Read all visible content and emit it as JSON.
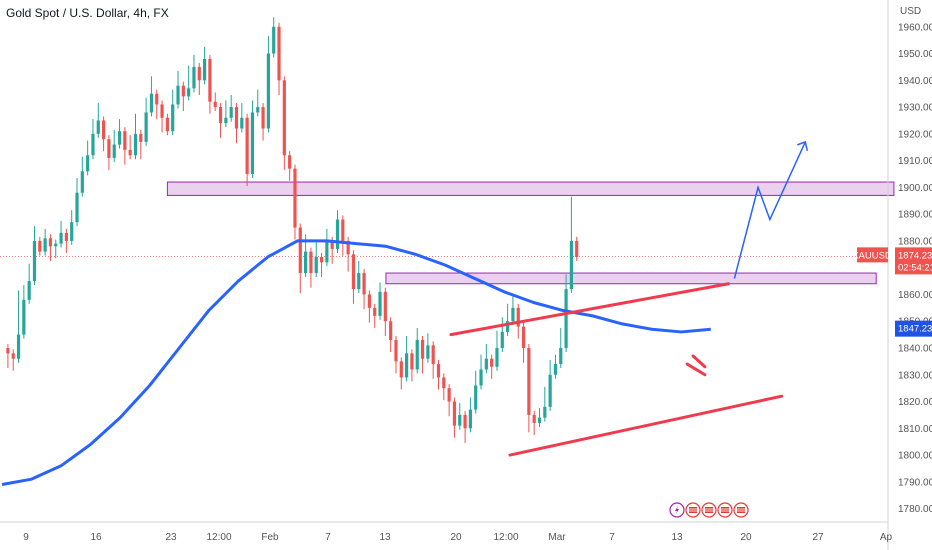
{
  "title": "Gold Spot / U.S. Dollar, 4h, FX",
  "currency": "USD",
  "chart_data": {
    "type": "candlestick",
    "symbol": "XAUUSD",
    "ylim": [
      1775,
      1970
    ],
    "y_ticks": [
      1780,
      1790,
      1800,
      1810,
      1820,
      1830,
      1840,
      1850,
      1860,
      1870,
      1880,
      1890,
      1900,
      1910,
      1920,
      1930,
      1940,
      1950,
      1960
    ],
    "x_ticks": [
      "9",
      "16",
      "23",
      "12:00",
      "Feb",
      "7",
      "13",
      "20",
      "12:00",
      "Mar",
      "7",
      "13",
      "20",
      "27",
      "Ap"
    ],
    "last_price": {
      "label": "XAUUSD",
      "value": "1874.23",
      "countdown": "02:54:21",
      "color": "#ef5350"
    },
    "ma_price": {
      "value": "1847.23",
      "color": "#1e53e5"
    },
    "moving_average": {
      "color": "#2962ff",
      "points": [
        [
          0,
          1789
        ],
        [
          5,
          1791
        ],
        [
          10,
          1796
        ],
        [
          15,
          1804
        ],
        [
          20,
          1814
        ],
        [
          25,
          1826
        ],
        [
          30,
          1840
        ],
        [
          35,
          1854
        ],
        [
          40,
          1865
        ],
        [
          45,
          1874
        ],
        [
          50,
          1880
        ],
        [
          55,
          1880
        ],
        [
          60,
          1879
        ],
        [
          65,
          1878
        ],
        [
          70,
          1875
        ],
        [
          75,
          1871
        ],
        [
          80,
          1866
        ],
        [
          85,
          1861
        ],
        [
          90,
          1857
        ],
        [
          95,
          1854
        ],
        [
          100,
          1852
        ],
        [
          105,
          1849
        ],
        [
          110,
          1847
        ],
        [
          115,
          1846
        ],
        [
          120,
          1847
        ]
      ]
    },
    "zones": [
      {
        "name": "upper-zone",
        "x_start": 28,
        "x_end": 151,
        "y_low": 1897,
        "y_high": 1902,
        "color": "#e1bee7",
        "border": "#9c27b0"
      },
      {
        "name": "lower-zone",
        "x_start": 65,
        "x_end": 148,
        "y_low": 1864,
        "y_high": 1868,
        "color": "#e1bee7",
        "border": "#9c27b0"
      }
    ],
    "trendlines": [
      {
        "color": "#ef3b4d",
        "x": [
          76,
          123
        ],
        "y": [
          1845,
          1864
        ]
      },
      {
        "color": "#ef3b4d",
        "x": [
          86,
          132
        ],
        "y": [
          1800,
          1822
        ]
      },
      {
        "color": "#ef3b4d",
        "x": [
          116,
          119
        ],
        "y": [
          1834,
          1830
        ]
      },
      {
        "color": "#ef3b4d",
        "x": [
          117,
          119
        ],
        "y": [
          1837,
          1833
        ]
      }
    ],
    "projection": {
      "color": "#2962ff",
      "x": [
        124,
        128,
        130,
        136
      ],
      "y": [
        1866,
        1900,
        1888,
        1917
      ]
    },
    "candles": [
      [
        0,
        1840,
        1838,
        1834
      ],
      [
        1,
        1838,
        1836,
        1833
      ],
      [
        2,
        1836,
        1845,
        1860
      ],
      [
        3,
        1845,
        1858,
        1862
      ],
      [
        4,
        1858,
        1865,
        1870
      ],
      [
        5,
        1865,
        1880,
        1884
      ],
      [
        6,
        1880,
        1876,
        1878
      ],
      [
        7,
        1876,
        1881,
        1883
      ],
      [
        8,
        1881,
        1878,
        1874
      ],
      [
        9,
        1878,
        1879,
        1875
      ],
      [
        10,
        1879,
        1883,
        1886
      ],
      [
        11,
        1883,
        1880,
        1877
      ],
      [
        12,
        1880,
        1887,
        1890
      ],
      [
        13,
        1887,
        1898,
        1902
      ],
      [
        14,
        1898,
        1906,
        1910
      ],
      [
        15,
        1906,
        1912,
        1916
      ],
      [
        16,
        1912,
        1920,
        1924
      ],
      [
        17,
        1920,
        1925,
        1930
      ],
      [
        18,
        1925,
        1918,
        1915
      ],
      [
        19,
        1918,
        1911,
        1908
      ],
      [
        20,
        1911,
        1916,
        1920
      ],
      [
        21,
        1916,
        1921,
        1924
      ],
      [
        22,
        1921,
        1914,
        1910
      ],
      [
        23,
        1914,
        1912,
        1918
      ],
      [
        24,
        1912,
        1920,
        1926
      ],
      [
        25,
        1920,
        1917,
        1912
      ],
      [
        26,
        1917,
        1928,
        1932
      ],
      [
        27,
        1928,
        1935,
        1940
      ],
      [
        28,
        1935,
        1931,
        1927
      ],
      [
        29,
        1931,
        1926,
        1922
      ],
      [
        30,
        1926,
        1921,
        1924
      ],
      [
        31,
        1921,
        1931,
        1935
      ],
      [
        32,
        1931,
        1938,
        1942
      ],
      [
        33,
        1938,
        1934,
        1930
      ],
      [
        34,
        1934,
        1937,
        1944
      ],
      [
        35,
        1937,
        1945,
        1948
      ],
      [
        36,
        1945,
        1940,
        1936
      ],
      [
        37,
        1940,
        1948,
        1951
      ],
      [
        38,
        1948,
        1932,
        1929
      ],
      [
        39,
        1932,
        1930,
        1934
      ],
      [
        40,
        1930,
        1924,
        1920
      ],
      [
        41,
        1924,
        1926,
        1931
      ],
      [
        42,
        1926,
        1930,
        1933
      ],
      [
        43,
        1930,
        1922,
        1918
      ],
      [
        44,
        1922,
        1926,
        1930
      ],
      [
        45,
        1926,
        1905,
        1902
      ],
      [
        46,
        1905,
        1928,
        1931
      ],
      [
        47,
        1928,
        1930,
        1935
      ],
      [
        48,
        1930,
        1922,
        1919
      ],
      [
        49,
        1922,
        1950,
        1955
      ],
      [
        50,
        1950,
        1960,
        1962
      ],
      [
        51,
        1960,
        1940,
        1936
      ],
      [
        52,
        1940,
        1912,
        1908
      ],
      [
        53,
        1912,
        1907,
        1904
      ],
      [
        54,
        1907,
        1885,
        1882
      ],
      [
        55,
        1885,
        1868,
        1862
      ],
      [
        56,
        1868,
        1876,
        1881
      ],
      [
        57,
        1876,
        1868,
        1864
      ],
      [
        58,
        1868,
        1874,
        1878
      ],
      [
        59,
        1874,
        1872,
        1868
      ],
      [
        60,
        1872,
        1880,
        1883
      ],
      [
        61,
        1880,
        1877,
        1873
      ],
      [
        62,
        1877,
        1888,
        1890
      ],
      [
        63,
        1888,
        1880,
        1876
      ],
      [
        64,
        1880,
        1875,
        1870
      ],
      [
        65,
        1875,
        1862,
        1858
      ],
      [
        66,
        1862,
        1868,
        1871
      ],
      [
        67,
        1868,
        1860,
        1856
      ],
      [
        68,
        1860,
        1855,
        1851
      ],
      [
        69,
        1855,
        1852,
        1849
      ],
      [
        70,
        1852,
        1861,
        1863
      ],
      [
        71,
        1861,
        1850,
        1846
      ],
      [
        72,
        1850,
        1843,
        1840
      ],
      [
        73,
        1843,
        1835,
        1832
      ],
      [
        74,
        1835,
        1829,
        1826
      ],
      [
        75,
        1829,
        1838,
        1843
      ],
      [
        76,
        1838,
        1832,
        1829
      ],
      [
        77,
        1832,
        1843,
        1846
      ],
      [
        78,
        1843,
        1836,
        1832
      ],
      [
        79,
        1836,
        1841,
        1844
      ],
      [
        80,
        1841,
        1834,
        1830
      ],
      [
        81,
        1834,
        1829,
        1826
      ],
      [
        82,
        1829,
        1825,
        1822
      ],
      [
        83,
        1825,
        1820,
        1816
      ],
      [
        84,
        1820,
        1811,
        1808
      ],
      [
        85,
        1811,
        1815,
        1818
      ],
      [
        86,
        1815,
        1810,
        1806
      ],
      [
        87,
        1810,
        1817,
        1820
      ],
      [
        88,
        1817,
        1826,
        1830
      ],
      [
        89,
        1826,
        1832,
        1836
      ],
      [
        90,
        1832,
        1836,
        1840
      ],
      [
        91,
        1836,
        1833,
        1830
      ],
      [
        92,
        1833,
        1840,
        1845
      ],
      [
        93,
        1840,
        1846,
        1850
      ],
      [
        94,
        1846,
        1850,
        1855
      ],
      [
        95,
        1850,
        1855,
        1858
      ],
      [
        96,
        1855,
        1848,
        1845
      ],
      [
        97,
        1848,
        1840,
        1836
      ],
      [
        98,
        1840,
        1815,
        1810
      ],
      [
        99,
        1815,
        1812,
        1809
      ],
      [
        100,
        1812,
        1814,
        1816
      ],
      [
        101,
        1814,
        1818,
        1824
      ],
      [
        102,
        1818,
        1830,
        1834
      ],
      [
        103,
        1830,
        1834,
        1836
      ],
      [
        104,
        1834,
        1840,
        1846
      ],
      [
        105,
        1840,
        1862,
        1866
      ],
      [
        106,
        1862,
        1880,
        1895
      ],
      [
        107,
        1880,
        1874,
        1877
      ]
    ]
  },
  "badges": [
    "lightning",
    "flag",
    "flag",
    "flag",
    "flag"
  ]
}
